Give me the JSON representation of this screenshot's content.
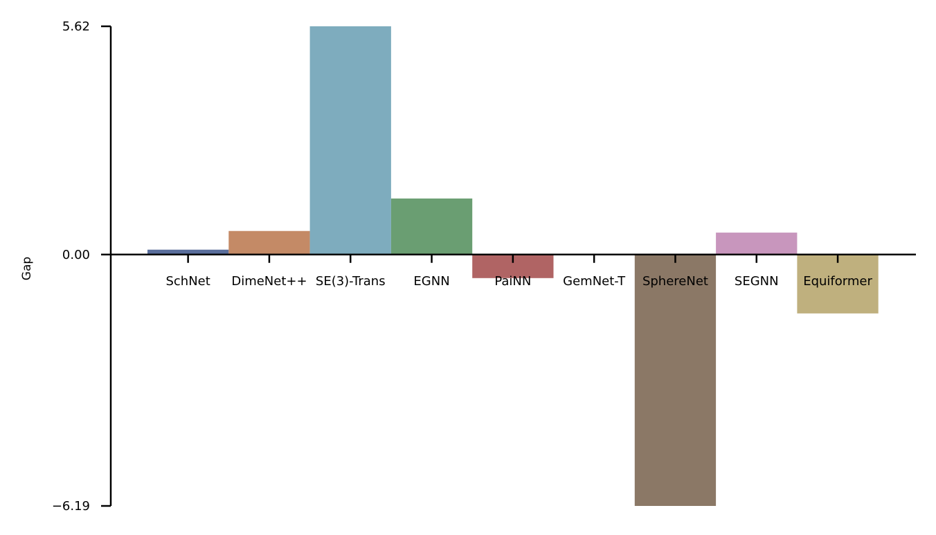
{
  "chart_data": {
    "type": "bar",
    "categories": [
      "SchNet",
      "DimeNet++",
      "SE(3)-Trans",
      "EGNN",
      "PaiNN",
      "GemNet-T",
      "SphereNet",
      "SEGNN",
      "Equiformer"
    ],
    "values": [
      0.12,
      0.58,
      5.62,
      1.38,
      -0.58,
      0.0,
      -6.19,
      0.54,
      -1.45
    ],
    "colors": [
      "#5a6e9c",
      "#c48a66",
      "#7eacbe",
      "#6a9e72",
      "#b06464",
      "#8c8c8c",
      "#8b7866",
      "#c896bd",
      "#bfb07e"
    ],
    "title": "",
    "xlabel": "",
    "ylabel": "Gap",
    "ylim": [
      -6.19,
      5.62
    ],
    "yticks": [
      "5.62",
      "0.00",
      "−6.19"
    ],
    "grid": false
  }
}
